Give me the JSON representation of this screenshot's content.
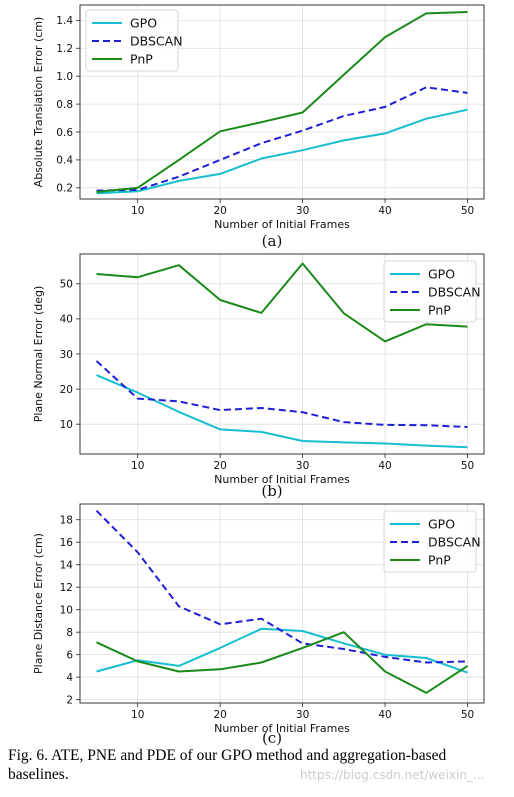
{
  "chart_data": [
    {
      "type": "line",
      "panel_label": "(a)",
      "xlabel": "Number of Initial Frames",
      "ylabel": "Absolute Translation Error (cm)",
      "x": [
        5,
        10,
        15,
        20,
        25,
        30,
        35,
        40,
        45,
        50
      ],
      "xticks": [
        10,
        20,
        30,
        40,
        50
      ],
      "yticks": [
        0.2,
        0.4,
        0.6,
        0.8,
        1.0,
        1.2,
        1.4
      ],
      "ytick_labels": [
        "0.2",
        "0.4",
        "0.6",
        "0.8",
        "1.0",
        "1.2",
        "1.4"
      ],
      "xlim": [
        3,
        52
      ],
      "ylim": [
        0.12,
        1.51
      ],
      "grid": true,
      "legend_position": "top-left",
      "series": [
        {
          "name": "GPO",
          "color": "#17becf",
          "dash": "solid",
          "values": [
            0.16,
            0.175,
            0.25,
            0.3,
            0.41,
            0.47,
            0.54,
            0.59,
            0.695,
            0.76
          ]
        },
        {
          "name": "DBSCAN",
          "color": "#1f1fd6",
          "dash": "dashed",
          "values": [
            0.18,
            0.185,
            0.28,
            0.4,
            0.52,
            0.61,
            0.715,
            0.78,
            0.92,
            0.88
          ]
        },
        {
          "name": "PnP",
          "color": "#1a8a1a",
          "dash": "solid",
          "values": [
            0.17,
            0.2,
            0.4,
            0.605,
            0.67,
            0.74,
            1.01,
            1.28,
            1.45,
            1.46
          ]
        }
      ]
    },
    {
      "type": "line",
      "panel_label": "(b)",
      "xlabel": "Number of Initial Frames",
      "ylabel": "Plane Normal Error (deg)",
      "x": [
        5,
        10,
        15,
        20,
        25,
        30,
        35,
        40,
        45,
        50
      ],
      "xticks": [
        10,
        20,
        30,
        40,
        50
      ],
      "yticks": [
        10,
        20,
        30,
        40,
        50
      ],
      "ytick_labels": [
        "10",
        "20",
        "30",
        "40",
        "50"
      ],
      "xlim": [
        3,
        52
      ],
      "ylim": [
        1.5,
        58.5
      ],
      "grid": true,
      "legend_position": "top-right",
      "series": [
        {
          "name": "GPO",
          "color": "#17becf",
          "dash": "solid",
          "values": [
            24.0,
            19.0,
            13.5,
            8.5,
            7.8,
            5.2,
            4.8,
            4.5,
            3.9,
            3.4
          ]
        },
        {
          "name": "DBSCAN",
          "color": "#1f1fd6",
          "dash": "dashed",
          "values": [
            28.0,
            17.3,
            16.5,
            14.0,
            14.6,
            13.4,
            10.6,
            9.8,
            9.7,
            9.2
          ]
        },
        {
          "name": "PnP",
          "color": "#1a8a1a",
          "dash": "solid",
          "values": [
            52.8,
            51.9,
            55.3,
            45.4,
            41.7,
            55.8,
            41.6,
            33.6,
            38.5,
            37.8
          ]
        }
      ]
    },
    {
      "type": "line",
      "panel_label": "(c)",
      "xlabel": "Number of Initial Frames",
      "ylabel": "Plane Distance Error (cm)",
      "x": [
        5,
        10,
        15,
        20,
        25,
        30,
        35,
        40,
        45,
        50
      ],
      "xticks": [
        10,
        20,
        30,
        40,
        50
      ],
      "yticks": [
        2,
        4,
        6,
        8,
        10,
        12,
        14,
        16,
        18
      ],
      "ytick_labels": [
        "2",
        "4",
        "6",
        "8",
        "10",
        "12",
        "14",
        "16",
        "18"
      ],
      "xlim": [
        3,
        52
      ],
      "ylim": [
        1.7,
        19.4
      ],
      "grid": true,
      "legend_position": "top-right",
      "series": [
        {
          "name": "GPO",
          "color": "#17becf",
          "dash": "solid",
          "values": [
            4.5,
            5.5,
            5.0,
            6.6,
            8.3,
            8.1,
            7.0,
            6.0,
            5.7,
            4.4
          ]
        },
        {
          "name": "DBSCAN",
          "color": "#1f1fd6",
          "dash": "dashed",
          "values": [
            18.8,
            15.1,
            10.3,
            8.7,
            9.2,
            7.0,
            6.5,
            5.8,
            5.3,
            5.4
          ]
        },
        {
          "name": "PnP",
          "color": "#1a8a1a",
          "dash": "solid",
          "values": [
            7.1,
            5.4,
            4.5,
            4.7,
            5.3,
            6.6,
            8.0,
            4.5,
            2.6,
            5.0
          ]
        }
      ]
    }
  ],
  "caption": {
    "text": "Fig. 6.   ATE, PNE and PDE of our GPO method and aggregation-based baselines."
  },
  "watermark": "https://blog.csdn.net/weixin_..."
}
